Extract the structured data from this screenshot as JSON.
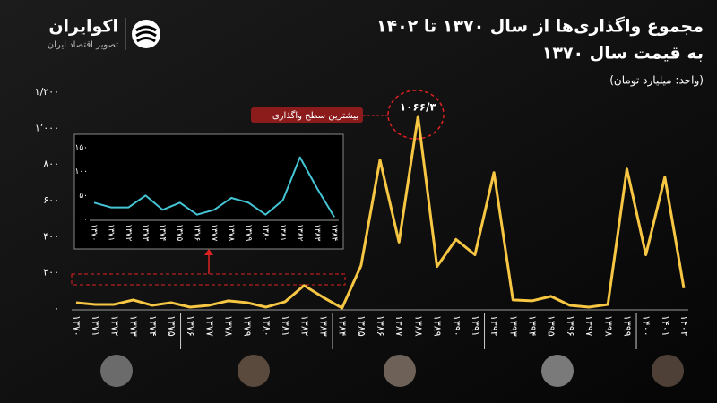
{
  "header": {
    "brand": "اکوایران",
    "tagline": "تصویر اقتصاد ایران"
  },
  "chart_data": [
    {
      "type": "line",
      "title": "مجموع واگذاری‌ها از سال ۱۳۷۰ تا ۱۴۰۲",
      "subtitle": "به قیمت سال ۱۳۷۰",
      "unit": "(واحد: میلیارد تومان)",
      "annotation": "بیشترین سطح واگذاری",
      "categories": [
        "۱۳۷۰",
        "۱۳۷۱",
        "۱۳۷۲",
        "۱۳۷۳",
        "۱۳۷۴",
        "۱۳۷۵",
        "۱۳۷۶",
        "۱۳۷۷",
        "۱۳۷۸",
        "۱۳۷۹",
        "۱۳۸۰",
        "۱۳۸۱",
        "۱۳۸۲",
        "۱۳۸۳",
        "۱۳۸۴",
        "۱۳۸۵",
        "۱۳۸۶",
        "۱۳۸۷",
        "۱۳۸۸",
        "۱۳۸۹",
        "۱۳۹۰",
        "۱۳۹۱",
        "۱۳۹۲",
        "۱۳۹۳",
        "۱۳۹۴",
        "۱۳۹۵",
        "۱۳۹۶",
        "۱۳۹۷",
        "۱۳۹۸",
        "۱۳۹۹",
        "۱۴۰۰",
        "۱۴۰۱",
        "۱۴۰۲"
      ],
      "values": [
        35,
        25,
        25,
        50,
        20,
        35,
        10,
        20,
        45,
        35,
        10,
        40,
        130,
        65,
        5,
        240,
        825,
        370,
        1066.3,
        235,
        385,
        300,
        755,
        50,
        45,
        70,
        20,
        10,
        25,
        775,
        300,
        730,
        115
      ],
      "value_labels": [
        null,
        null,
        null,
        null,
        null,
        null,
        null,
        null,
        null,
        null,
        null,
        null,
        null,
        null,
        null,
        null,
        null,
        null,
        "۱۰۶۶/۳",
        null,
        null,
        null,
        null,
        null,
        null,
        null,
        null,
        null,
        null,
        null,
        null,
        null,
        null
      ],
      "color": "#f7c744",
      "ylim": [
        0,
        1200
      ],
      "yticks": [
        {
          "value": 0,
          "label": "۰"
        },
        {
          "value": 200,
          "label": "۲۰۰"
        },
        {
          "value": 400,
          "label": "۴۰۰"
        },
        {
          "value": 600,
          "label": "۶۰۰"
        },
        {
          "value": 800,
          "label": "۸۰۰"
        },
        {
          "value": 1000,
          "label": "۱٬۰۰۰"
        },
        {
          "value": 1200,
          "label": "۱/۲۰۰"
        }
      ],
      "grid": false
    },
    {
      "type": "line",
      "categories": [
        "۱۳۷۰",
        "۱۳۷۱",
        "۱۳۷۲",
        "۱۳۷۳",
        "۱۳۷۴",
        "۱۳۷۵",
        "۱۳۷۶",
        "۱۳۷۷",
        "۱۳۷۸",
        "۱۳۷۹",
        "۱۳۸۰",
        "۱۳۸۱",
        "۱۳۸۲",
        "۱۳۸۳",
        "۱۳۸۴"
      ],
      "values": [
        35,
        25,
        25,
        50,
        20,
        35,
        10,
        20,
        45,
        35,
        10,
        40,
        130,
        65,
        5
      ],
      "color": "#45c6d6",
      "ylim": [
        0,
        150
      ],
      "yticks": [
        {
          "value": 0,
          "label": "۰"
        },
        {
          "value": 50,
          "label": "۵۰"
        },
        {
          "value": 100,
          "label": "۱۰۰"
        },
        {
          "value": 150,
          "label": "۱۵۰"
        }
      ],
      "grid": false
    }
  ]
}
